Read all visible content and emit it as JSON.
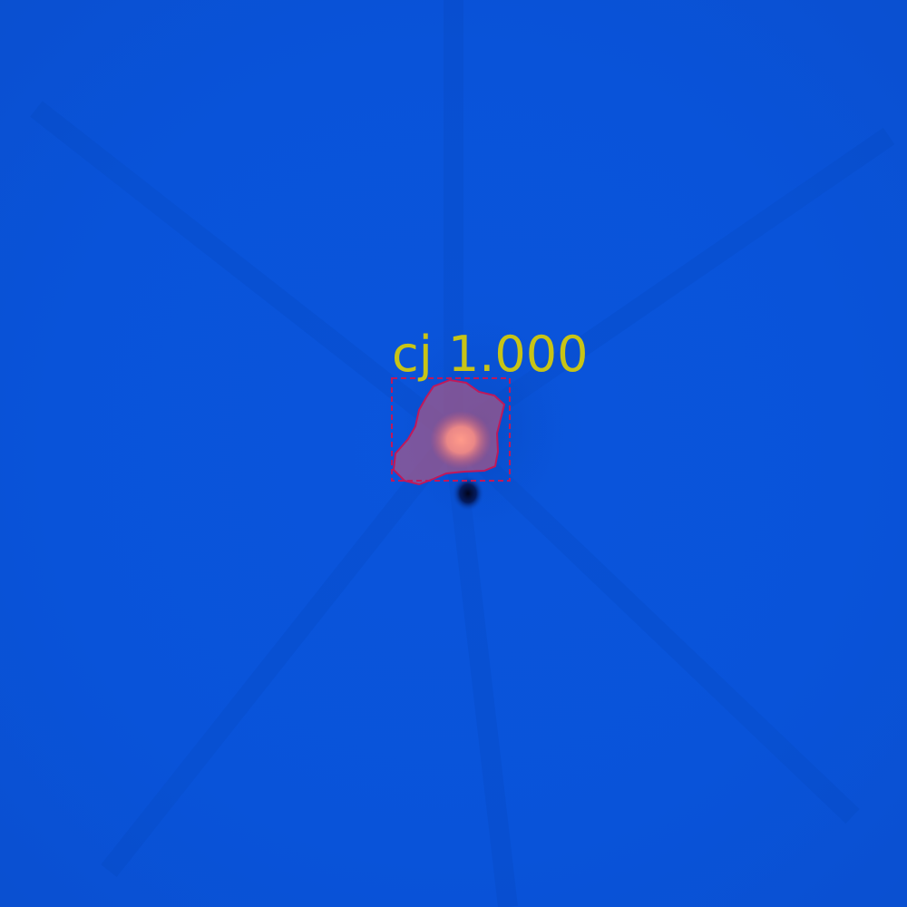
{
  "image": {
    "background_color": "#0a52d8",
    "source_core_color": "#ff9a8a",
    "source_halo_color": "#c2587a",
    "dark_spot_color": "#02041a"
  },
  "detection": {
    "label": "cj 1.000",
    "class_name": "cj",
    "score": 1.0,
    "box_color": "#c0185a",
    "mask_color": "#c0185a",
    "label_color": "#c8c416"
  }
}
